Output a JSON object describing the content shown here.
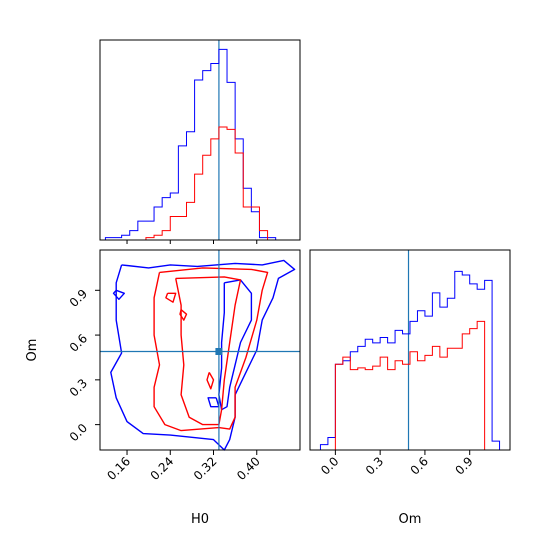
{
  "colors": {
    "run_a": "#0000ff",
    "run_b": "#ff0000",
    "truth": "#1f77b4"
  },
  "chart_data": [
    {
      "type": "histogram",
      "panel": "top-left",
      "parameter": "H0",
      "xlim": [
        0.11,
        0.48
      ],
      "bin_edges": [
        0.12,
        0.135,
        0.15,
        0.165,
        0.18,
        0.195,
        0.21,
        0.225,
        0.24,
        0.255,
        0.27,
        0.285,
        0.3,
        0.315,
        0.33,
        0.345,
        0.36,
        0.375,
        0.39,
        0.405,
        0.42,
        0.435,
        0.45,
        0.465
      ],
      "series": [
        {
          "color_key": "run_a",
          "counts": [
            1,
            1,
            2,
            4,
            8,
            8,
            14,
            18,
            20,
            40,
            46,
            68,
            72,
            75,
            81,
            67,
            43,
            22,
            12,
            1,
            1,
            0,
            0
          ]
        },
        {
          "color_key": "run_b",
          "counts": [
            0,
            0,
            0,
            0,
            0,
            1,
            2,
            4,
            10,
            10,
            16,
            28,
            36,
            43,
            48,
            47,
            37,
            14,
            14,
            4,
            0,
            0,
            0
          ]
        }
      ],
      "truth": 0.33,
      "ylim": [
        0,
        85
      ]
    },
    {
      "type": "contour",
      "panel": "bottom-left",
      "x_param": "H0",
      "y_param": "Om",
      "xlim": [
        0.11,
        0.48
      ],
      "ylim": [
        -0.17,
        1.17
      ],
      "xlabel": "H0",
      "ylabel": "Om",
      "x_ticks": [
        0.16,
        0.24,
        0.32,
        0.4
      ],
      "x_tick_labels": [
        "0.16",
        "0.24",
        "0.32",
        "0.40"
      ],
      "y_ticks": [
        0.0,
        0.3,
        0.6,
        0.9
      ],
      "y_tick_labels": [
        "0.0",
        "0.3",
        "0.6",
        "0.9"
      ],
      "truth": [
        0.33,
        0.49
      ],
      "contours": [
        {
          "color_key": "run_a",
          "points": [
            [
              0.15,
              1.07
            ],
            [
              0.2,
              1.05
            ],
            [
              0.24,
              1.07
            ],
            [
              0.29,
              1.06
            ],
            [
              0.36,
              1.08
            ],
            [
              0.41,
              1.07
            ],
            [
              0.45,
              1.1
            ],
            [
              0.47,
              1.04
            ],
            [
              0.44,
              0.98
            ],
            [
              0.43,
              0.85
            ],
            [
              0.41,
              0.7
            ],
            [
              0.4,
              0.5
            ],
            [
              0.38,
              0.35
            ],
            [
              0.36,
              0.2
            ],
            [
              0.36,
              0.05
            ],
            [
              0.35,
              -0.1
            ],
            [
              0.34,
              -0.17
            ],
            [
              0.32,
              -0.1
            ],
            [
              0.24,
              -0.07
            ],
            [
              0.19,
              -0.06
            ],
            [
              0.16,
              0.02
            ],
            [
              0.14,
              0.18
            ],
            [
              0.13,
              0.35
            ],
            [
              0.15,
              0.48
            ],
            [
              0.14,
              0.7
            ],
            [
              0.14,
              0.95
            ],
            [
              0.15,
              1.07
            ]
          ]
        },
        {
          "color_key": "run_a",
          "points": [
            [
              0.14,
              0.9
            ],
            [
              0.155,
              0.88
            ],
            [
              0.145,
              0.84
            ],
            [
              0.135,
              0.88
            ],
            [
              0.14,
              0.9
            ]
          ]
        },
        {
          "color_key": "run_a",
          "points": [
            [
              0.34,
              0.95
            ],
            [
              0.37,
              0.97
            ],
            [
              0.39,
              0.88
            ],
            [
              0.39,
              0.7
            ],
            [
              0.37,
              0.55
            ],
            [
              0.36,
              0.4
            ],
            [
              0.35,
              0.25
            ],
            [
              0.345,
              0.12
            ],
            [
              0.335,
              0.1
            ],
            [
              0.33,
              0.2
            ],
            [
              0.335,
              0.38
            ],
            [
              0.335,
              0.55
            ],
            [
              0.34,
              0.75
            ],
            [
              0.34,
              0.95
            ]
          ]
        },
        {
          "color_key": "run_a",
          "points": [
            [
              0.325,
              0.18
            ],
            [
              0.33,
              0.12
            ],
            [
              0.315,
              0.12
            ],
            [
              0.31,
              0.18
            ],
            [
              0.325,
              0.18
            ]
          ]
        },
        {
          "color_key": "run_b",
          "points": [
            [
              0.22,
              1.02
            ],
            [
              0.3,
              1.05
            ],
            [
              0.39,
              1.04
            ],
            [
              0.42,
              1.02
            ],
            [
              0.41,
              0.9
            ],
            [
              0.4,
              0.7
            ],
            [
              0.38,
              0.45
            ],
            [
              0.36,
              0.25
            ],
            [
              0.36,
              0.05
            ],
            [
              0.35,
              -0.03
            ],
            [
              0.33,
              -0.02
            ],
            [
              0.26,
              -0.04
            ],
            [
              0.23,
              0.0
            ],
            [
              0.21,
              0.12
            ],
            [
              0.21,
              0.25
            ],
            [
              0.22,
              0.4
            ],
            [
              0.21,
              0.6
            ],
            [
              0.21,
              0.85
            ],
            [
              0.22,
              1.02
            ]
          ]
        },
        {
          "color_key": "run_b",
          "points": [
            [
              0.25,
              0.98
            ],
            [
              0.34,
              0.99
            ],
            [
              0.37,
              0.97
            ],
            [
              0.36,
              0.8
            ],
            [
              0.35,
              0.55
            ],
            [
              0.34,
              0.3
            ],
            [
              0.335,
              0.1
            ],
            [
              0.33,
              0.0
            ],
            [
              0.3,
              0.0
            ],
            [
              0.275,
              0.05
            ],
            [
              0.26,
              0.2
            ],
            [
              0.265,
              0.4
            ],
            [
              0.26,
              0.6
            ],
            [
              0.26,
              0.8
            ],
            [
              0.25,
              0.98
            ]
          ]
        },
        {
          "color_key": "run_b",
          "points": [
            [
              0.235,
              0.88
            ],
            [
              0.25,
              0.88
            ],
            [
              0.245,
              0.82
            ],
            [
              0.232,
              0.85
            ],
            [
              0.235,
              0.88
            ]
          ]
        },
        {
          "color_key": "run_b",
          "points": [
            [
              0.26,
              0.77
            ],
            [
              0.27,
              0.74
            ],
            [
              0.265,
              0.7
            ],
            [
              0.258,
              0.74
            ],
            [
              0.26,
              0.77
            ]
          ]
        },
        {
          "color_key": "run_b",
          "points": [
            [
              0.312,
              0.35
            ],
            [
              0.32,
              0.3
            ],
            [
              0.315,
              0.24
            ],
            [
              0.308,
              0.3
            ],
            [
              0.312,
              0.35
            ]
          ]
        }
      ]
    },
    {
      "type": "histogram",
      "panel": "bottom-right",
      "parameter": "Om",
      "xlim": [
        -0.17,
        1.17
      ],
      "xlabel": "Om",
      "x_ticks": [
        0.0,
        0.3,
        0.6,
        0.9
      ],
      "x_tick_labels": [
        "0.0",
        "0.3",
        "0.6",
        "0.9"
      ],
      "bin_edges": [
        -0.1,
        -0.05,
        0.0,
        0.05,
        0.1,
        0.15,
        0.2,
        0.25,
        0.3,
        0.35,
        0.4,
        0.45,
        0.5,
        0.55,
        0.6,
        0.65,
        0.7,
        0.75,
        0.8,
        0.85,
        0.9,
        0.95,
        1.0,
        1.05,
        1.1
      ],
      "series": [
        {
          "color_key": "run_a",
          "counts": [
            3,
            7,
            48,
            50,
            55,
            58,
            62,
            60,
            63,
            60,
            67,
            65,
            72,
            78,
            75,
            88,
            80,
            85,
            100,
            98,
            93,
            90,
            95,
            5
          ]
        },
        {
          "color_key": "run_b",
          "counts": [
            0,
            0,
            48,
            52,
            45,
            46,
            45,
            47,
            52,
            45,
            50,
            48,
            55,
            50,
            53,
            58,
            52,
            57,
            57,
            65,
            68,
            72,
            0,
            0
          ]
        }
      ],
      "truth": 0.49,
      "ylim": [
        0,
        112
      ]
    }
  ]
}
